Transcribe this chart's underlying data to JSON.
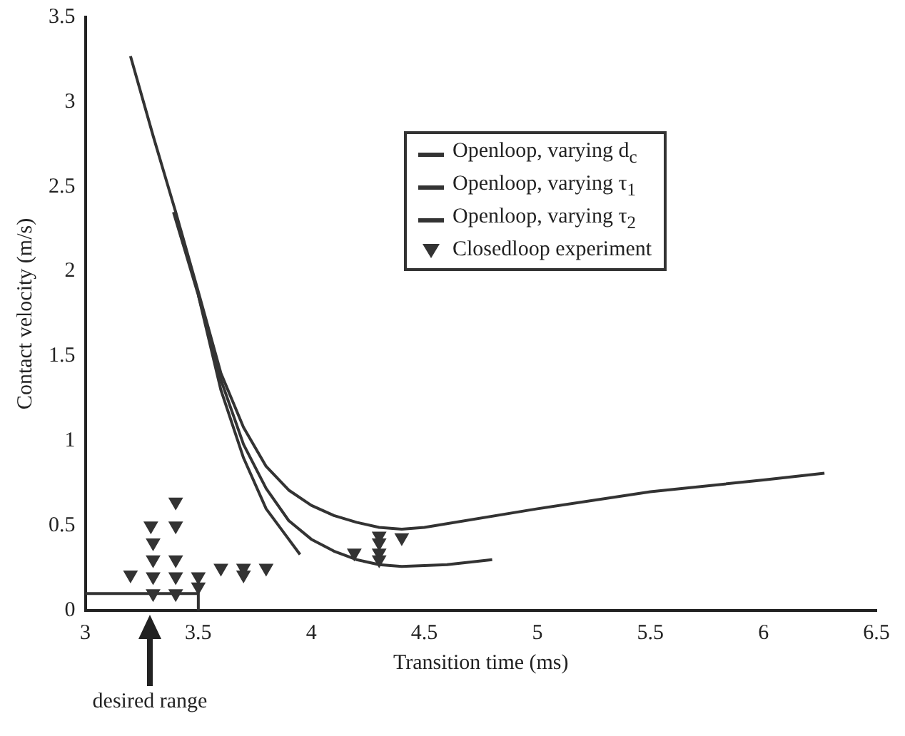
{
  "chart_data": {
    "type": "line",
    "xlabel": "Transition time (ms)",
    "ylabel": "Contact velocity (m/s)",
    "xlim": [
      3,
      6.5
    ],
    "xticks": [
      3,
      3.5,
      4,
      4.5,
      5,
      5.5,
      6,
      6.5
    ],
    "ylim": [
      0,
      3.5
    ],
    "yticks": [
      0,
      0.5,
      1,
      1.5,
      2,
      2.5,
      3,
      3.5
    ],
    "grid": false,
    "legend": "top right",
    "annotations": [
      "desired range"
    ],
    "series": [
      {
        "name": "Openloop, varying d$_{c}$",
        "color": "#333333",
        "x": [
          3.2,
          3.3,
          3.4,
          3.5,
          3.6,
          3.7,
          3.8,
          3.9,
          4.0,
          4.1,
          4.2,
          4.3,
          4.4,
          4.5,
          5.0,
          5.5,
          6.0,
          6.27
        ],
        "values": [
          3.27,
          2.8,
          2.35,
          1.88,
          1.4,
          1.08,
          0.85,
          0.71,
          0.62,
          0.56,
          0.52,
          0.49,
          0.48,
          0.49,
          0.6,
          0.7,
          0.77,
          0.81
        ]
      },
      {
        "name": "Openloop, varying τ$_{1}$",
        "color": "#333333",
        "x": [
          3.39,
          3.5,
          3.6,
          3.7,
          3.8,
          3.9,
          3.95
        ],
        "values": [
          2.35,
          1.86,
          1.3,
          0.9,
          0.6,
          0.42,
          0.33
        ]
      },
      {
        "name": "Openloop, varying τ$_{2}$",
        "color": "#333333",
        "x": [
          3.5,
          3.6,
          3.7,
          3.8,
          3.9,
          4.0,
          4.1,
          4.2,
          4.3,
          4.4,
          4.6,
          4.8
        ],
        "values": [
          1.86,
          1.36,
          0.98,
          0.72,
          0.53,
          0.42,
          0.35,
          0.3,
          0.27,
          0.26,
          0.27,
          0.3
        ]
      },
      {
        "name": "Closedloop experiment",
        "type": "scatter",
        "marker": "triangle",
        "color": "#333333",
        "x": [
          3.2,
          3.29,
          3.3,
          3.3,
          3.3,
          3.3,
          3.4,
          3.4,
          3.4,
          3.4,
          3.4,
          3.5,
          3.5,
          3.6,
          3.7,
          3.7,
          3.8,
          4.19,
          4.3,
          4.3,
          4.3,
          4.3,
          4.4
        ],
        "values": [
          0.21,
          0.5,
          0.4,
          0.3,
          0.2,
          0.1,
          0.64,
          0.5,
          0.3,
          0.2,
          0.1,
          0.2,
          0.14,
          0.25,
          0.25,
          0.21,
          0.25,
          0.34,
          0.44,
          0.4,
          0.34,
          0.3,
          0.43
        ]
      },
      {
        "color": "#333333",
        "x": [
          3,
          3.5,
          3.5
        ],
        "values": [
          0.1,
          0.1,
          0
        ]
      }
    ]
  }
}
